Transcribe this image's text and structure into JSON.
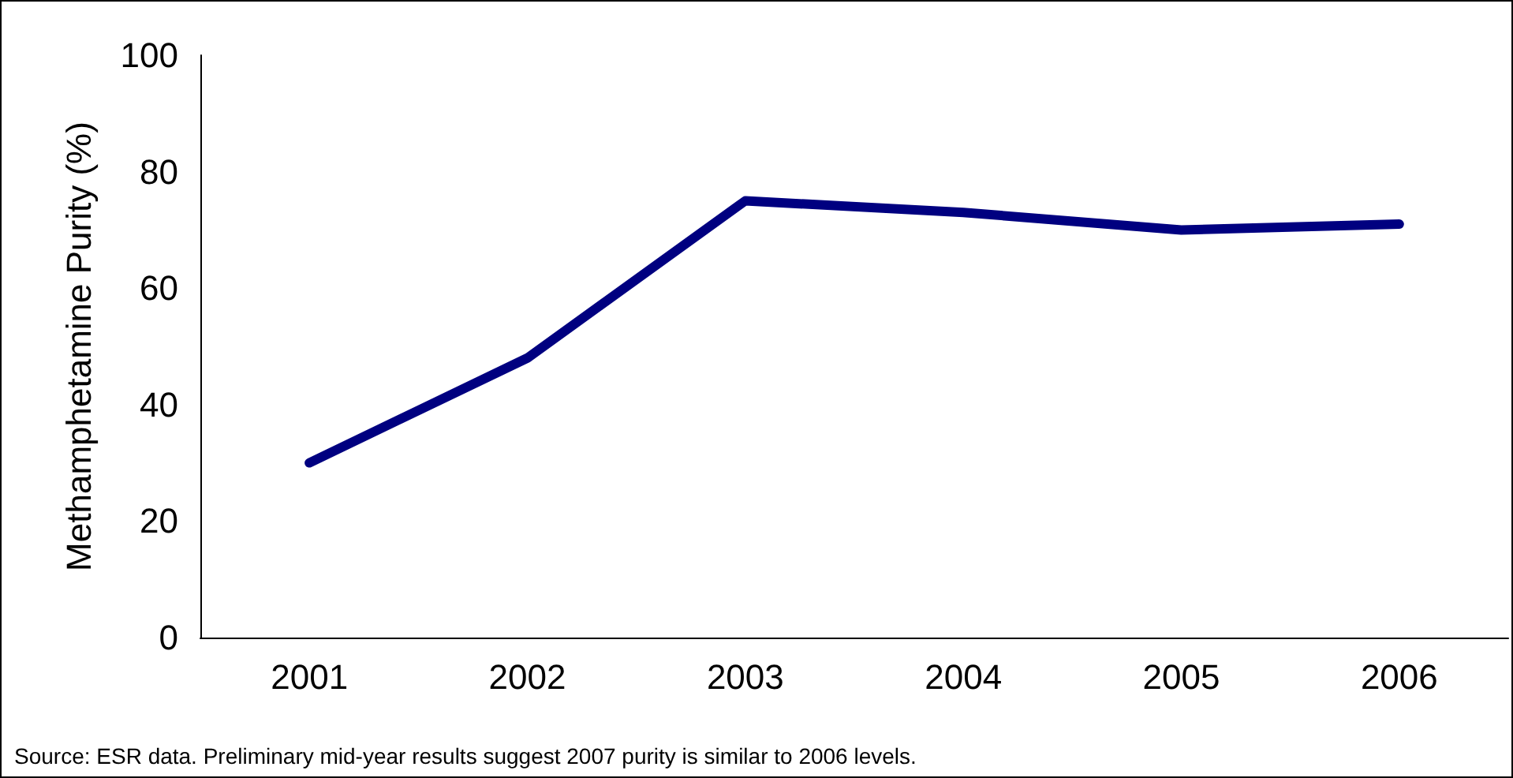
{
  "chart_data": {
    "type": "line",
    "ylabel": "Methamphetamine Purity (%)",
    "categories": [
      "2001",
      "2002",
      "2003",
      "2004",
      "2005",
      "2006"
    ],
    "series": [
      {
        "color": "#000080",
        "values": [
          30,
          48,
          75,
          73,
          70,
          71
        ]
      }
    ],
    "ylim": [
      0,
      100
    ],
    "yticks": [
      0,
      20,
      40,
      60,
      80,
      100
    ],
    "grid": false,
    "marker": "none",
    "line_style": "solid",
    "annotations": [
      "Source: ESR data. Preliminary mid-year results suggest 2007 purity is similar to 2006 levels."
    ]
  }
}
